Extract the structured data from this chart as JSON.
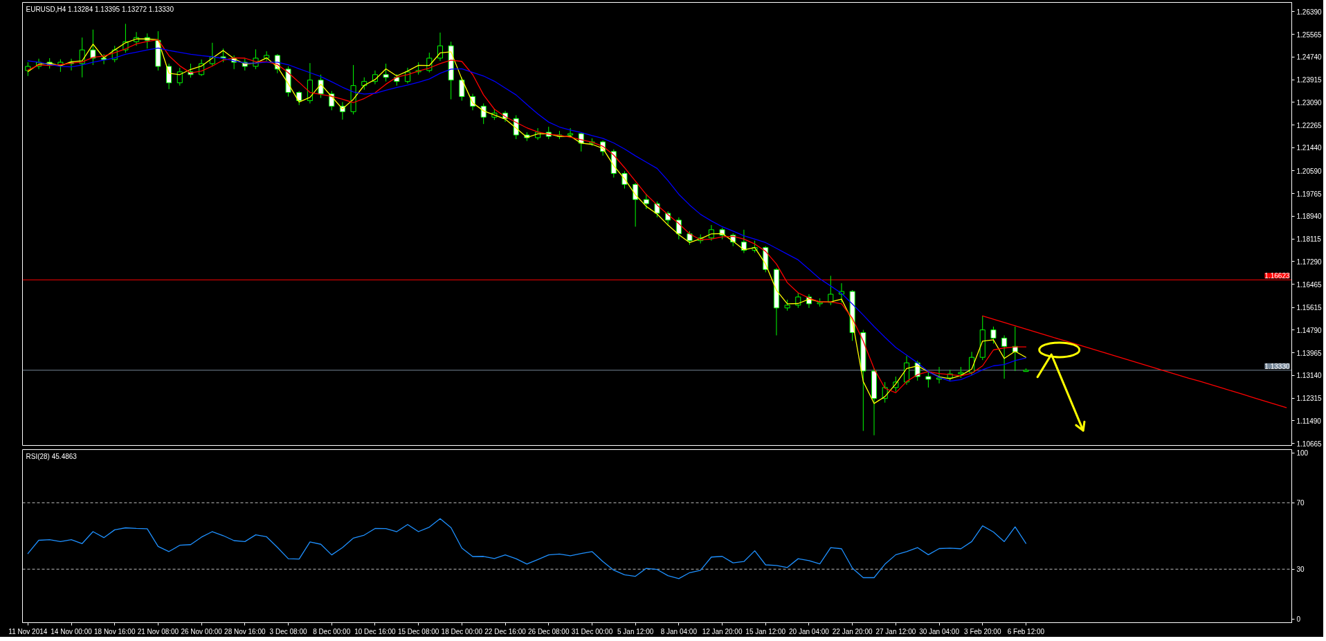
{
  "chart_data": [
    {
      "type": "candlestick",
      "title": "EURUSD,H4 1.13284 1.13395 1.13272 1.13330",
      "color": "#00ff00",
      "categories": [
        null,
        null,
        null,
        null,
        null,
        null,
        null,
        null,
        null,
        null,
        null,
        null,
        null,
        null,
        null,
        null,
        null,
        null,
        null,
        null,
        null,
        null,
        null,
        null,
        null,
        null,
        null,
        null,
        null,
        null,
        null,
        null,
        null,
        null,
        null,
        null,
        null,
        null,
        null,
        null,
        null,
        null,
        null,
        null,
        null,
        null,
        null,
        null,
        null,
        null,
        null,
        null,
        null,
        null,
        null,
        null,
        null,
        null,
        null,
        null,
        null,
        null,
        null,
        null,
        null,
        null,
        null,
        null,
        null,
        null,
        null,
        null,
        null,
        null,
        null,
        null,
        null,
        null,
        null,
        null,
        null,
        null,
        null,
        null,
        null,
        null,
        null,
        null,
        null,
        null,
        null,
        null,
        null,
        null,
        null,
        null,
        null,
        null,
        null,
        null,
        null,
        null,
        null,
        null,
        null,
        null,
        null,
        null,
        null,
        null,
        null,
        null,
        null,
        null,
        null,
        null,
        null
      ],
      "ohlc": [
        [
          1.2425,
          1.2455,
          1.2405,
          1.244
        ],
        [
          1.244,
          1.2468,
          1.243,
          1.2455
        ],
        [
          1.2455,
          1.247,
          1.2432,
          1.2445
        ],
        [
          1.2445,
          1.2466,
          1.242,
          1.2455
        ],
        [
          1.2455,
          1.2468,
          1.2425,
          1.245
        ],
        [
          1.245,
          1.2545,
          1.24,
          1.25
        ],
        [
          1.25,
          1.2574,
          1.2445,
          1.247
        ],
        [
          1.247,
          1.2485,
          1.2448,
          1.2465
        ],
        [
          1.2465,
          1.2515,
          1.2455,
          1.25
        ],
        [
          1.25,
          1.2595,
          1.249,
          1.253
        ],
        [
          1.253,
          1.2565,
          1.2515,
          1.2545
        ],
        [
          1.2545,
          1.256,
          1.2505,
          1.2535
        ],
        [
          1.2535,
          1.2568,
          1.2425,
          1.244
        ],
        [
          1.244,
          1.245,
          1.2357,
          1.238
        ],
        [
          1.238,
          1.2435,
          1.237,
          1.242
        ],
        [
          1.242,
          1.245,
          1.2399,
          1.241
        ],
        [
          1.241,
          1.2465,
          1.2405,
          1.245
        ],
        [
          1.245,
          1.2526,
          1.244,
          1.2475
        ],
        [
          1.2475,
          1.2505,
          1.2455,
          1.247
        ],
        [
          1.247,
          1.248,
          1.243,
          1.2455
        ],
        [
          1.2455,
          1.2468,
          1.2425,
          1.244
        ],
        [
          1.244,
          1.2502,
          1.243,
          1.247
        ],
        [
          1.247,
          1.2495,
          1.246,
          1.248
        ],
        [
          1.248,
          1.2485,
          1.2415,
          1.243
        ],
        [
          1.243,
          1.244,
          1.233,
          1.2345
        ],
        [
          1.2345,
          1.235,
          1.2299,
          1.2315
        ],
        [
          1.2315,
          1.2452,
          1.2305,
          1.239
        ],
        [
          1.239,
          1.241,
          1.2325,
          1.234
        ],
        [
          1.234,
          1.235,
          1.228,
          1.2295
        ],
        [
          1.2295,
          1.231,
          1.2246,
          1.2275
        ],
        [
          1.2275,
          1.2445,
          1.2265,
          1.237
        ],
        [
          1.237,
          1.24,
          1.2355,
          1.2385
        ],
        [
          1.2385,
          1.2425,
          1.2375,
          1.241
        ],
        [
          1.241,
          1.245,
          1.2385,
          1.24
        ],
        [
          1.24,
          1.2412,
          1.237,
          1.2385
        ],
        [
          1.2385,
          1.2435,
          1.2378,
          1.242
        ],
        [
          1.242,
          1.2455,
          1.241,
          1.2425
        ],
        [
          1.2425,
          1.249,
          1.2418,
          1.247
        ],
        [
          1.247,
          1.2563,
          1.246,
          1.2515
        ],
        [
          1.2515,
          1.253,
          1.232,
          1.239
        ],
        [
          1.239,
          1.24,
          1.2315,
          1.233
        ],
        [
          1.233,
          1.234,
          1.228,
          1.2295
        ],
        [
          1.2295,
          1.2305,
          1.223,
          1.2255
        ],
        [
          1.2255,
          1.2285,
          1.2245,
          1.227
        ],
        [
          1.227,
          1.2278,
          1.2238,
          1.225
        ],
        [
          1.225,
          1.2262,
          1.2175,
          1.219
        ],
        [
          1.219,
          1.22,
          1.2168,
          1.218
        ],
        [
          1.218,
          1.2215,
          1.2172,
          1.22
        ],
        [
          1.22,
          1.222,
          1.2175,
          1.2185
        ],
        [
          1.2185,
          1.2205,
          1.2175,
          1.219
        ],
        [
          1.219,
          1.2215,
          1.218,
          1.2195
        ],
        [
          1.2195,
          1.22,
          1.213,
          1.216
        ],
        [
          1.216,
          1.2178,
          1.215,
          1.2165
        ],
        [
          1.2165,
          1.217,
          1.2115,
          1.213
        ],
        [
          1.213,
          1.2138,
          1.2035,
          1.205
        ],
        [
          1.205,
          1.2058,
          1.1995,
          1.201
        ],
        [
          1.201,
          1.2015,
          1.1856,
          1.1955
        ],
        [
          1.1955,
          1.1975,
          1.192,
          1.194
        ],
        [
          1.194,
          1.1948,
          1.189,
          1.1905
        ],
        [
          1.1905,
          1.1912,
          1.186,
          1.188
        ],
        [
          1.188,
          1.189,
          1.181,
          1.183
        ],
        [
          1.183,
          1.184,
          1.179,
          1.1805
        ],
        [
          1.1805,
          1.1828,
          1.1795,
          1.1815
        ],
        [
          1.1815,
          1.1862,
          1.1805,
          1.1845
        ],
        [
          1.1845,
          1.1852,
          1.181,
          1.1825
        ],
        [
          1.1825,
          1.1832,
          1.1785,
          1.18
        ],
        [
          1.18,
          1.1845,
          1.176,
          1.177
        ],
        [
          1.177,
          1.1805,
          1.1762,
          1.178
        ],
        [
          1.178,
          1.1785,
          1.169,
          1.17
        ],
        [
          1.17,
          1.1705,
          1.146,
          1.156
        ],
        [
          1.156,
          1.159,
          1.155,
          1.157
        ],
        [
          1.157,
          1.1615,
          1.156,
          1.16
        ],
        [
          1.16,
          1.161,
          1.156,
          1.1575
        ],
        [
          1.1575,
          1.1595,
          1.1565,
          1.158
        ],
        [
          1.158,
          1.1677,
          1.157,
          1.161
        ],
        [
          1.161,
          1.165,
          1.158,
          1.162
        ],
        [
          1.162,
          1.1625,
          1.144,
          1.147
        ],
        [
          1.147,
          1.148,
          1.1112,
          1.133
        ],
        [
          1.133,
          1.134,
          1.1096,
          1.123
        ],
        [
          1.123,
          1.129,
          1.1215,
          1.127
        ],
        [
          1.127,
          1.131,
          1.1255,
          1.129
        ],
        [
          1.129,
          1.1385,
          1.128,
          1.136
        ],
        [
          1.136,
          1.1368,
          1.1295,
          1.131
        ],
        [
          1.131,
          1.1325,
          1.127,
          1.13
        ],
        [
          1.13,
          1.1345,
          1.1285,
          1.1305
        ],
        [
          1.1305,
          1.1335,
          1.1295,
          1.132
        ],
        [
          1.132,
          1.1345,
          1.1305,
          1.1325
        ],
        [
          1.1325,
          1.14,
          1.1315,
          1.138
        ],
        [
          1.138,
          1.1531,
          1.137,
          1.148
        ],
        [
          1.148,
          1.1492,
          1.143,
          1.145
        ],
        [
          1.145,
          1.146,
          1.1302,
          1.142
        ],
        [
          1.142,
          1.1492,
          1.133,
          1.14
        ],
        [
          1.13284,
          1.13395,
          1.13272,
          1.1333
        ],
        null,
        null,
        null,
        null,
        null,
        null,
        null,
        null,
        null,
        null,
        null,
        null,
        null,
        null,
        null,
        null,
        null,
        null,
        null,
        null,
        null,
        null,
        null,
        null
      ],
      "colors": [
        "#000000",
        "#000000",
        "#ffffff",
        "#000000",
        "#ffffff",
        "#000000",
        "#ffffff",
        "#ffffff",
        "#000000",
        "#000000",
        "#000000",
        "#ffffff",
        "#ffffff",
        "#ffffff",
        "#000000",
        "#ffffff",
        "#000000",
        "#000000",
        "#ffffff",
        "#ffffff",
        "#ffffff",
        "#000000",
        "#000000",
        "#ffffff",
        "#ffffff",
        "#ffffff",
        "#000000",
        "#ffffff",
        "#ffffff",
        "#ffffff",
        "#000000",
        "#000000",
        "#000000",
        "#ffffff",
        "#ffffff",
        "#000000",
        "#000000",
        "#000000",
        "#000000",
        "#ffffff",
        "#ffffff",
        "#ffffff",
        "#ffffff",
        "#000000",
        "#ffffff",
        "#ffffff",
        "#ffffff",
        "#000000",
        "#ffffff",
        "#000000",
        "#000000",
        "#ffffff",
        "#000000",
        "#ffffff",
        "#ffffff",
        "#ffffff",
        "#ffffff",
        "#ffffff",
        "#ffffff",
        "#ffffff",
        "#ffffff",
        "#ffffff",
        "#000000",
        "#000000",
        "#ffffff",
        "#ffffff",
        "#ffffff",
        "#000000",
        "#ffffff",
        "#ffffff",
        "#000000",
        "#000000",
        "#ffffff",
        "#000000",
        "#000000",
        "#000000",
        "#ffffff",
        "#ffffff",
        "#ffffff",
        "#000000",
        "#000000",
        "#000000",
        "#ffffff",
        "#ffffff",
        "#000000",
        "#000000",
        "#000000",
        "#000000",
        "#000000",
        "#ffffff",
        "#ffffff",
        "#ffffff",
        "#000000",
        null,
        null,
        null,
        null,
        null,
        null,
        null,
        null,
        null,
        null,
        null,
        null,
        null,
        null,
        null,
        null,
        null,
        null,
        null,
        null,
        null,
        null,
        null,
        null
      ],
      "series": [
        {
          "type": "line",
          "color": "#ffff00",
          "values": [
            1.2421,
            1.2448,
            1.2452,
            1.2442,
            1.2457,
            1.246,
            1.2521,
            1.2471,
            1.25,
            1.2526,
            1.254,
            1.254,
            1.2537,
            1.2415,
            1.241,
            1.2429,
            1.2441,
            1.247,
            1.2498,
            1.2468,
            1.2449,
            1.2452,
            1.2471,
            1.2438,
            1.2377,
            1.231,
            1.2327,
            1.2375,
            1.233,
            1.2285,
            1.232,
            1.2371,
            1.2392,
            1.2431,
            1.2405,
            1.2423,
            1.2444,
            1.2443,
            1.2489,
            1.2493,
            1.2394,
            1.2307,
            1.2278,
            1.2263,
            1.2248,
            1.2215,
            1.2181,
            1.2194,
            1.2195,
            1.2184,
            1.2186,
            1.216,
            1.2156,
            1.2141,
            1.2078,
            1.203,
            1.1972,
            1.193,
            1.1902,
            1.1862,
            1.1827,
            1.1798,
            1.1812,
            1.183,
            1.1831,
            1.1803,
            1.1772,
            1.178,
            1.172,
            1.1624,
            1.1575,
            1.1576,
            1.1592,
            1.1582,
            1.1582,
            1.1592,
            1.1513,
            1.1292,
            1.1212,
            1.1237,
            1.1283,
            1.1339,
            1.1349,
            1.1328,
            1.1309,
            1.1302,
            1.1314,
            1.1337,
            1.1439,
            1.1444,
            1.1376,
            1.1402,
            1.138,
            null,
            null,
            null,
            null,
            null,
            null,
            null,
            null,
            null,
            null,
            null,
            null,
            null,
            null,
            null,
            null,
            null,
            null,
            null,
            null,
            null,
            null,
            null,
            null
          ]
        },
        {
          "type": "line",
          "color": "#ff0000",
          "values": [
            1.2426,
            1.2445,
            1.2443,
            1.2446,
            1.2452,
            1.2456,
            1.2473,
            1.2478,
            1.249,
            1.2504,
            1.2522,
            1.2531,
            1.2537,
            1.2479,
            1.2442,
            1.2416,
            1.2423,
            1.2441,
            1.2463,
            1.2471,
            1.247,
            1.2457,
            1.2457,
            1.2447,
            1.2417,
            1.2382,
            1.2345,
            1.2338,
            1.2331,
            1.232,
            1.2308,
            1.2323,
            1.2344,
            1.2375,
            1.2401,
            1.241,
            1.2423,
            1.2434,
            1.245,
            1.2463,
            1.2458,
            1.241,
            1.2336,
            1.2284,
            1.2257,
            1.2236,
            1.2216,
            1.2201,
            1.2193,
            1.2189,
            1.2182,
            1.2173,
            1.2164,
            1.2149,
            1.2117,
            1.2071,
            1.2022,
            1.1973,
            1.1935,
            1.19,
            1.1867,
            1.183,
            1.1808,
            1.1811,
            1.1819,
            1.1821,
            1.1811,
            1.1793,
            1.1766,
            1.172,
            1.1652,
            1.1615,
            1.1596,
            1.1582,
            1.1582,
            1.1575,
            1.1522,
            1.1439,
            1.1339,
            1.1267,
            1.1251,
            1.1292,
            1.1317,
            1.1328,
            1.1321,
            1.1317,
            1.1313,
            1.1322,
            1.1349,
            1.1407,
            1.1414,
            1.1418,
            1.1418,
            null,
            null,
            null,
            null,
            null,
            null,
            null,
            null,
            null,
            null,
            null,
            null,
            null,
            null,
            null,
            null,
            null,
            null,
            null,
            null,
            null,
            null,
            null,
            null
          ]
        },
        {
          "type": "line",
          "color": "#0000ff",
          "values": [
            1.246,
            1.2455,
            1.2447,
            1.244,
            1.2438,
            1.2445,
            1.2455,
            1.2463,
            1.2471,
            1.2484,
            1.2492,
            1.25,
            1.2507,
            1.2498,
            1.2491,
            1.2484,
            1.2479,
            1.2475,
            1.2469,
            1.246,
            1.2452,
            1.2452,
            1.2455,
            1.2455,
            1.2446,
            1.2431,
            1.2417,
            1.2403,
            1.2384,
            1.2364,
            1.2347,
            1.2339,
            1.2342,
            1.2353,
            1.2363,
            1.2372,
            1.2382,
            1.2394,
            1.2415,
            1.243,
            1.2431,
            1.2418,
            1.2405,
            1.2386,
            1.2361,
            1.2336,
            1.2301,
            1.2267,
            1.2237,
            1.2219,
            1.2208,
            1.2199,
            1.2188,
            1.2178,
            1.2161,
            1.2139,
            1.2114,
            1.2091,
            1.2068,
            1.2024,
            1.1974,
            1.1935,
            1.1901,
            1.1877,
            1.1856,
            1.184,
            1.1823,
            1.1811,
            1.1798,
            1.1777,
            1.1756,
            1.1735,
            1.1701,
            1.1666,
            1.164,
            1.1613,
            1.1574,
            1.1534,
            1.1492,
            1.1453,
            1.1416,
            1.1388,
            1.136,
            1.1328,
            1.1307,
            1.1293,
            1.1299,
            1.1315,
            1.1335,
            1.1349,
            1.1354,
            1.1368,
            1.1378,
            null,
            null,
            null,
            null,
            null,
            null,
            null,
            null,
            null,
            null,
            null,
            null,
            null,
            null,
            null,
            null,
            null,
            null,
            null,
            null,
            null,
            null,
            null,
            null
          ]
        },
        {
          "type": "line",
          "color": "#ff0000",
          "values": [
            null,
            null,
            null,
            null,
            null,
            null,
            null,
            null,
            null,
            null,
            null,
            null,
            null,
            null,
            null,
            null,
            null,
            null,
            null,
            null,
            null,
            null,
            null,
            null,
            null,
            null,
            null,
            null,
            null,
            null,
            null,
            null,
            null,
            null,
            null,
            null,
            null,
            null,
            null,
            null,
            null,
            null,
            null,
            null,
            null,
            null,
            null,
            null,
            null,
            null,
            null,
            null,
            null,
            null,
            null,
            null,
            null,
            null,
            null,
            null,
            null,
            null,
            null,
            null,
            null,
            null,
            null,
            null,
            null,
            null,
            null,
            null,
            null,
            null,
            null,
            null,
            null,
            null,
            null,
            null,
            null,
            null,
            null,
            null,
            null,
            null,
            null,
            null,
            1.1531,
            1.1519,
            1.1507,
            1.1495,
            1.1483,
            1.1471,
            1.1459,
            1.1447,
            1.1436,
            1.1424,
            1.1412,
            1.14,
            1.1388,
            1.1376,
            1.1364,
            1.1352,
            1.134,
            1.1328,
            1.1316,
            1.1304,
            1.1293,
            1.1281,
            1.1269,
            1.1257,
            1.1245,
            1.1233,
            1.1221,
            1.1209,
            1.1197
          ]
        }
      ],
      "ylim": [
        1.1059,
        1.2673
      ],
      "yticks": [
        {
          "value": 1.2639,
          "label": "1.26390"
        },
        {
          "value": 1.25565,
          "label": "1.25565"
        },
        {
          "value": 1.2474,
          "label": "1.24740"
        },
        {
          "value": 1.23915,
          "label": "1.23915"
        },
        {
          "value": 1.2309,
          "label": "1.23090"
        },
        {
          "value": 1.22265,
          "label": "1.22265"
        },
        {
          "value": 1.2144,
          "label": "1.21440"
        },
        {
          "value": 1.2059,
          "label": "1.20590"
        },
        {
          "value": 1.19765,
          "label": "1.19765"
        },
        {
          "value": 1.1894,
          "label": "1.18940"
        },
        {
          "value": 1.18115,
          "label": "1.18115"
        },
        {
          "value": 1.1729,
          "label": "1.17290"
        },
        {
          "value": 1.16465,
          "label": "1.16465"
        },
        {
          "value": 1.15615,
          "label": "1.15615"
        },
        {
          "value": 1.1479,
          "label": "1.14790"
        },
        {
          "value": 1.13965,
          "label": "1.13965"
        },
        {
          "value": 1.1314,
          "label": "1.13140"
        },
        {
          "value": 1.12315,
          "label": "1.12315"
        },
        {
          "value": 1.1149,
          "label": "1.11490"
        },
        {
          "value": 1.10665,
          "label": "1.10665"
        }
      ],
      "tick_labels": "y",
      "ref_lines": [
        {
          "axis": "y",
          "value": 1.16623,
          "label": "1.16623",
          "color": "#ff0000"
        },
        {
          "axis": "y",
          "value": 1.1333,
          "label": "1.13330",
          "color": "#778899"
        }
      ]
    },
    {
      "type": "line",
      "title": "RSI(28) 45.4863",
      "categories": [
        "11 Nov 2014",
        null,
        null,
        null,
        "14 Nov 00:00",
        null,
        null,
        null,
        "18 Nov 16:00",
        null,
        null,
        null,
        "21 Nov 08:00",
        null,
        null,
        null,
        "26 Nov 00:00",
        null,
        null,
        null,
        "28 Nov 16:00",
        null,
        null,
        null,
        "3 Dec 08:00",
        null,
        null,
        null,
        "8 Dec 00:00",
        null,
        null,
        null,
        "10 Dec 16:00",
        null,
        null,
        null,
        "15 Dec 08:00",
        null,
        null,
        null,
        "18 Dec 00:00",
        null,
        null,
        null,
        "22 Dec 16:00",
        null,
        null,
        null,
        "26 Dec 08:00",
        null,
        null,
        null,
        "31 Dec 00:00",
        null,
        null,
        null,
        "5 Jan 12:00",
        null,
        null,
        null,
        "8 Jan 04:00",
        null,
        null,
        null,
        "12 Jan 20:00",
        null,
        null,
        null,
        "15 Jan 12:00",
        null,
        null,
        null,
        "20 Jan 04:00",
        null,
        null,
        null,
        "22 Jan 20:00",
        null,
        null,
        null,
        "27 Jan 12:00",
        null,
        null,
        null,
        "30 Jan 04:00",
        null,
        null,
        null,
        "3 Feb 20:00",
        null,
        null,
        null,
        "6 Feb 12:00",
        null,
        null,
        null,
        null,
        null,
        null,
        null,
        null,
        null,
        null,
        null,
        null,
        null,
        null,
        null,
        null,
        null,
        null,
        null,
        null,
        null,
        null,
        null,
        null
      ],
      "series": [
        {
          "color": "#1e90ff",
          "values": [
            39.4,
            47.4,
            47.8,
            46.6,
            47.8,
            45.4,
            52.6,
            49.0,
            53.7,
            54.9,
            54.5,
            54.3,
            43.7,
            40.6,
            44.4,
            44.8,
            49.3,
            52.6,
            50.2,
            47.2,
            46.6,
            50.7,
            49.5,
            43.1,
            36.3,
            36.1,
            46.4,
            45.0,
            38.6,
            43.0,
            48.7,
            50.5,
            54.5,
            54.4,
            52.6,
            56.9,
            52.6,
            55.3,
            60.4,
            55.0,
            42.7,
            37.6,
            37.7,
            36.4,
            38.6,
            36.3,
            33.1,
            35.8,
            38.6,
            39.1,
            38.1,
            39.4,
            40.6,
            34.6,
            29.4,
            26.6,
            25.7,
            30.5,
            29.8,
            26.1,
            24.3,
            27.9,
            29.3,
            37.3,
            37.7,
            33.8,
            34.6,
            41.1,
            32.6,
            32.2,
            31.0,
            36.3,
            35.2,
            33.2,
            43.0,
            42.3,
            30.6,
            24.9,
            24.9,
            33.0,
            38.7,
            40.6,
            43.0,
            38.7,
            42.4,
            42.7,
            42.3,
            46.6,
            56.1,
            52.4,
            46.6,
            55.5,
            45.5,
            null,
            null,
            null,
            null,
            null,
            null,
            null,
            null,
            null,
            null,
            null,
            null,
            null,
            null,
            null,
            null,
            null,
            null,
            null,
            null,
            null,
            null,
            null,
            null
          ]
        }
      ],
      "ylim": [
        -2.2,
        102
      ],
      "yticks": [
        0,
        30,
        70,
        100
      ],
      "ref_lines": [
        {
          "axis": "y",
          "value": 70,
          "color": "#c0c0c0",
          "line_style": "dashed"
        },
        {
          "axis": "y",
          "value": 30,
          "color": "#c0c0c0",
          "line_style": "dashed"
        }
      ]
    }
  ]
}
